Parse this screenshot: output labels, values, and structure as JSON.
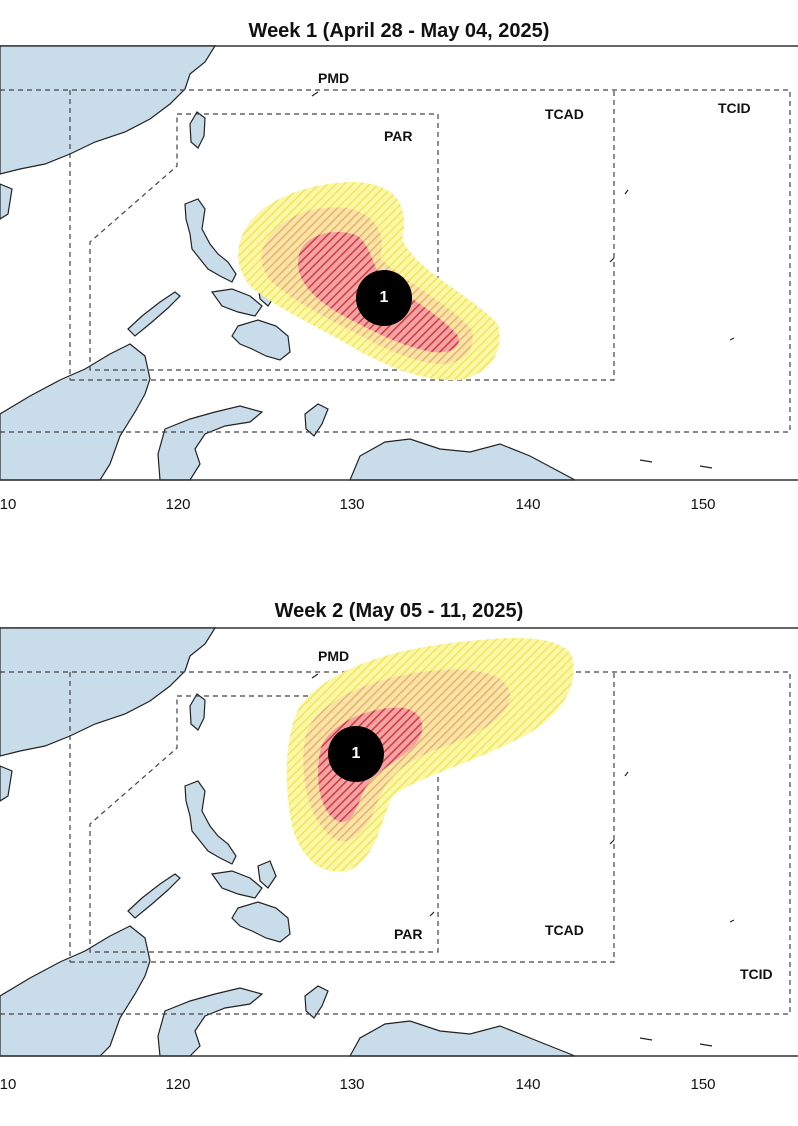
{
  "colors": {
    "land": "#c9dcea",
    "coast": "#222222",
    "outer_prob": "#f7f27a",
    "mid_prob": "#f0c16a",
    "inner_prob": "#d9474a",
    "marker": "#000000"
  },
  "panels": [
    {
      "title": "Week 1 (April 28 - May 04, 2025)",
      "x_ticks": [
        "10",
        "120",
        "130",
        "140",
        "150"
      ],
      "labels": {
        "pmd": "PMD",
        "par": "PAR",
        "tcad": "TCAD",
        "tcid": "TCID"
      },
      "marker_label": "1"
    },
    {
      "title": "Week 2 (May 05 - 11, 2025)",
      "x_ticks": [
        "10",
        "120",
        "130",
        "140",
        "150"
      ],
      "labels": {
        "pmd": "PMD",
        "par": "PAR",
        "tcad": "TCAD",
        "tcid": "TCID"
      },
      "marker_label": "1"
    }
  ]
}
